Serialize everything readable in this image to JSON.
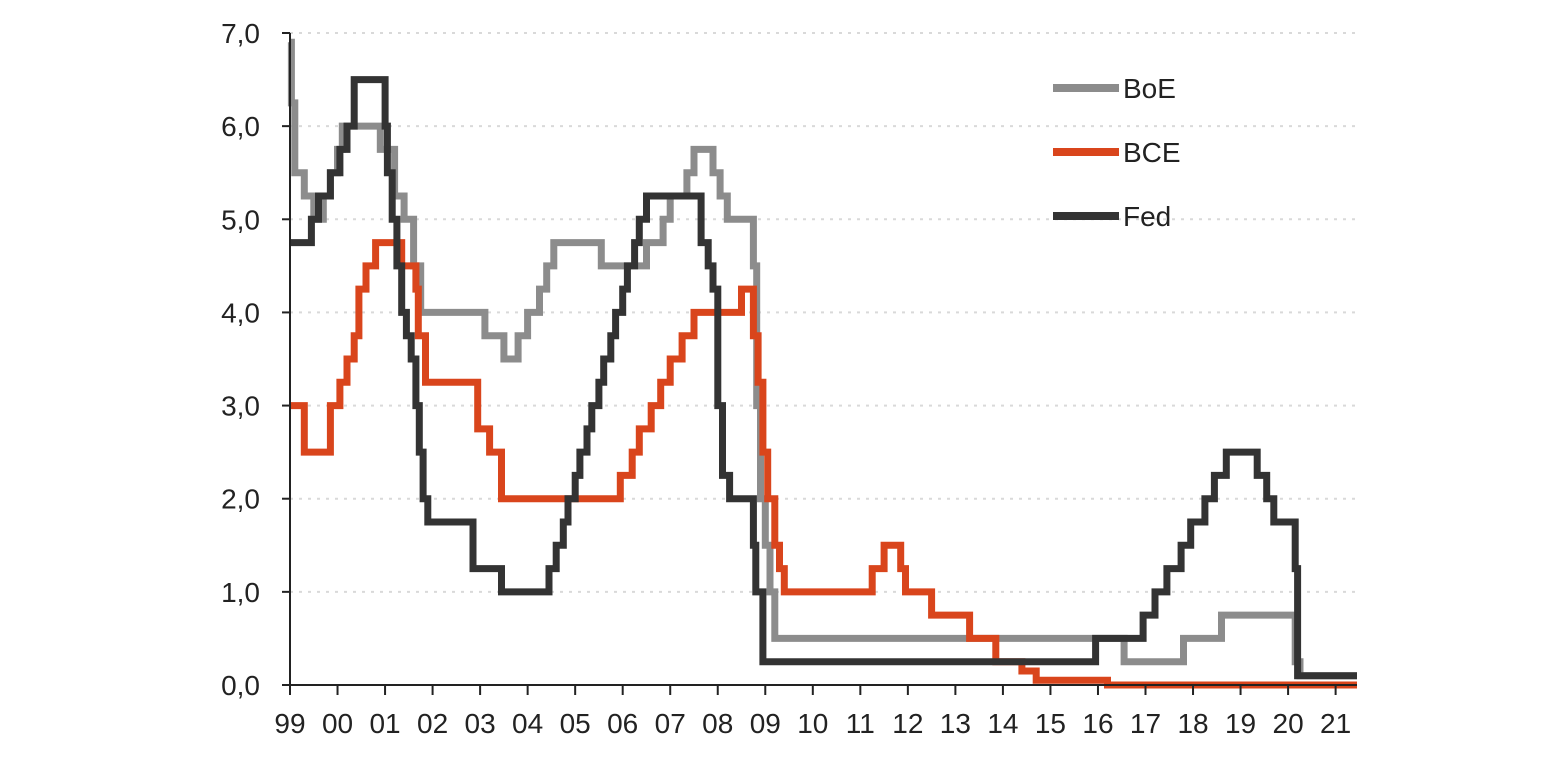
{
  "chart_data": {
    "type": "line",
    "title": "",
    "xlabel": "",
    "ylabel": "",
    "ylim": [
      0,
      7
    ],
    "xlim": [
      1999,
      2021.45
    ],
    "yticks": [
      "0,0",
      "1,0",
      "2,0",
      "3,0",
      "4,0",
      "5,0",
      "6,0",
      "7,0"
    ],
    "xticks": [
      "99",
      "00",
      "01",
      "02",
      "03",
      "04",
      "05",
      "06",
      "07",
      "08",
      "09",
      "10",
      "11",
      "12",
      "13",
      "14",
      "15",
      "16",
      "17",
      "18",
      "19",
      "20",
      "21"
    ],
    "grid": "horizontal dotted",
    "legend_position": "top-right",
    "step": true,
    "series": [
      {
        "name": "BoE",
        "color": "#8c8c8c",
        "points": [
          [
            1999.0,
            6.9
          ],
          [
            1999.03,
            6.25
          ],
          [
            1999.1,
            5.5
          ],
          [
            1999.3,
            5.25
          ],
          [
            1999.5,
            5.0
          ],
          [
            1999.7,
            5.25
          ],
          [
            1999.85,
            5.5
          ],
          [
            2000.0,
            5.75
          ],
          [
            2000.1,
            6.0
          ],
          [
            2000.9,
            5.75
          ],
          [
            2001.2,
            5.25
          ],
          [
            2001.4,
            5.0
          ],
          [
            2001.6,
            4.5
          ],
          [
            2001.75,
            4.0
          ],
          [
            2003.1,
            3.75
          ],
          [
            2003.5,
            3.5
          ],
          [
            2003.8,
            3.75
          ],
          [
            2004.0,
            4.0
          ],
          [
            2004.25,
            4.25
          ],
          [
            2004.4,
            4.5
          ],
          [
            2004.55,
            4.75
          ],
          [
            2005.55,
            4.5
          ],
          [
            2006.5,
            4.75
          ],
          [
            2006.85,
            5.0
          ],
          [
            2007.0,
            5.25
          ],
          [
            2007.35,
            5.5
          ],
          [
            2007.5,
            5.75
          ],
          [
            2007.9,
            5.5
          ],
          [
            2008.05,
            5.25
          ],
          [
            2008.2,
            5.0
          ],
          [
            2008.75,
            4.5
          ],
          [
            2008.82,
            3.0
          ],
          [
            2008.9,
            2.0
          ],
          [
            2009.0,
            1.5
          ],
          [
            2009.1,
            1.0
          ],
          [
            2009.2,
            0.5
          ],
          [
            2016.55,
            0.25
          ],
          [
            2017.8,
            0.5
          ],
          [
            2018.6,
            0.75
          ],
          [
            2020.15,
            0.25
          ],
          [
            2020.25,
            0.1
          ],
          [
            2021.45,
            0.1
          ]
        ]
      },
      {
        "name": "BCE",
        "color": "#d9451c",
        "points": [
          [
            1999.0,
            3.0
          ],
          [
            1999.3,
            2.5
          ],
          [
            1999.85,
            3.0
          ],
          [
            2000.05,
            3.25
          ],
          [
            2000.2,
            3.5
          ],
          [
            2000.35,
            3.75
          ],
          [
            2000.45,
            4.25
          ],
          [
            2000.6,
            4.5
          ],
          [
            2000.8,
            4.75
          ],
          [
            2001.35,
            4.5
          ],
          [
            2001.65,
            4.25
          ],
          [
            2001.7,
            3.75
          ],
          [
            2001.85,
            3.25
          ],
          [
            2002.95,
            2.75
          ],
          [
            2003.2,
            2.5
          ],
          [
            2003.45,
            2.0
          ],
          [
            2005.95,
            2.25
          ],
          [
            2006.2,
            2.5
          ],
          [
            2006.35,
            2.75
          ],
          [
            2006.6,
            3.0
          ],
          [
            2006.8,
            3.25
          ],
          [
            2007.0,
            3.5
          ],
          [
            2007.25,
            3.75
          ],
          [
            2007.5,
            4.0
          ],
          [
            2008.5,
            4.25
          ],
          [
            2008.75,
            3.75
          ],
          [
            2008.85,
            3.25
          ],
          [
            2008.95,
            2.5
          ],
          [
            2009.05,
            2.0
          ],
          [
            2009.2,
            1.5
          ],
          [
            2009.3,
            1.25
          ],
          [
            2009.4,
            1.0
          ],
          [
            2011.25,
            1.25
          ],
          [
            2011.5,
            1.5
          ],
          [
            2011.85,
            1.25
          ],
          [
            2011.95,
            1.0
          ],
          [
            2012.5,
            0.75
          ],
          [
            2013.3,
            0.5
          ],
          [
            2013.85,
            0.25
          ],
          [
            2014.4,
            0.15
          ],
          [
            2014.7,
            0.05
          ],
          [
            2016.2,
            0.0
          ],
          [
            2021.45,
            0.0
          ]
        ]
      },
      {
        "name": "Fed",
        "color": "#333333",
        "points": [
          [
            1999.0,
            4.75
          ],
          [
            1999.45,
            5.0
          ],
          [
            1999.6,
            5.25
          ],
          [
            1999.85,
            5.5
          ],
          [
            2000.05,
            5.75
          ],
          [
            2000.2,
            6.0
          ],
          [
            2000.35,
            6.5
          ],
          [
            2001.0,
            6.0
          ],
          [
            2001.05,
            5.5
          ],
          [
            2001.15,
            5.0
          ],
          [
            2001.25,
            4.5
          ],
          [
            2001.35,
            4.0
          ],
          [
            2001.45,
            3.75
          ],
          [
            2001.55,
            3.5
          ],
          [
            2001.65,
            3.0
          ],
          [
            2001.72,
            2.5
          ],
          [
            2001.8,
            2.0
          ],
          [
            2001.9,
            1.75
          ],
          [
            2002.85,
            1.25
          ],
          [
            2003.45,
            1.0
          ],
          [
            2004.45,
            1.25
          ],
          [
            2004.6,
            1.5
          ],
          [
            2004.75,
            1.75
          ],
          [
            2004.85,
            2.0
          ],
          [
            2005.0,
            2.25
          ],
          [
            2005.1,
            2.5
          ],
          [
            2005.25,
            2.75
          ],
          [
            2005.35,
            3.0
          ],
          [
            2005.5,
            3.25
          ],
          [
            2005.6,
            3.5
          ],
          [
            2005.75,
            3.75
          ],
          [
            2005.85,
            4.0
          ],
          [
            2006.0,
            4.25
          ],
          [
            2006.1,
            4.5
          ],
          [
            2006.25,
            4.75
          ],
          [
            2006.35,
            5.0
          ],
          [
            2006.5,
            5.25
          ],
          [
            2007.65,
            4.75
          ],
          [
            2007.8,
            4.5
          ],
          [
            2007.9,
            4.25
          ],
          [
            2008.0,
            3.0
          ],
          [
            2008.1,
            2.25
          ],
          [
            2008.25,
            2.0
          ],
          [
            2008.75,
            1.5
          ],
          [
            2008.8,
            1.0
          ],
          [
            2008.95,
            0.25
          ],
          [
            2015.95,
            0.5
          ],
          [
            2016.95,
            0.75
          ],
          [
            2017.2,
            1.0
          ],
          [
            2017.45,
            1.25
          ],
          [
            2017.75,
            1.5
          ],
          [
            2017.95,
            1.75
          ],
          [
            2018.25,
            2.0
          ],
          [
            2018.45,
            2.25
          ],
          [
            2018.7,
            2.5
          ],
          [
            2019.35,
            2.25
          ],
          [
            2019.55,
            2.0
          ],
          [
            2019.7,
            1.75
          ],
          [
            2020.15,
            1.25
          ],
          [
            2020.2,
            0.1
          ],
          [
            2021.45,
            0.1
          ]
        ]
      }
    ]
  }
}
